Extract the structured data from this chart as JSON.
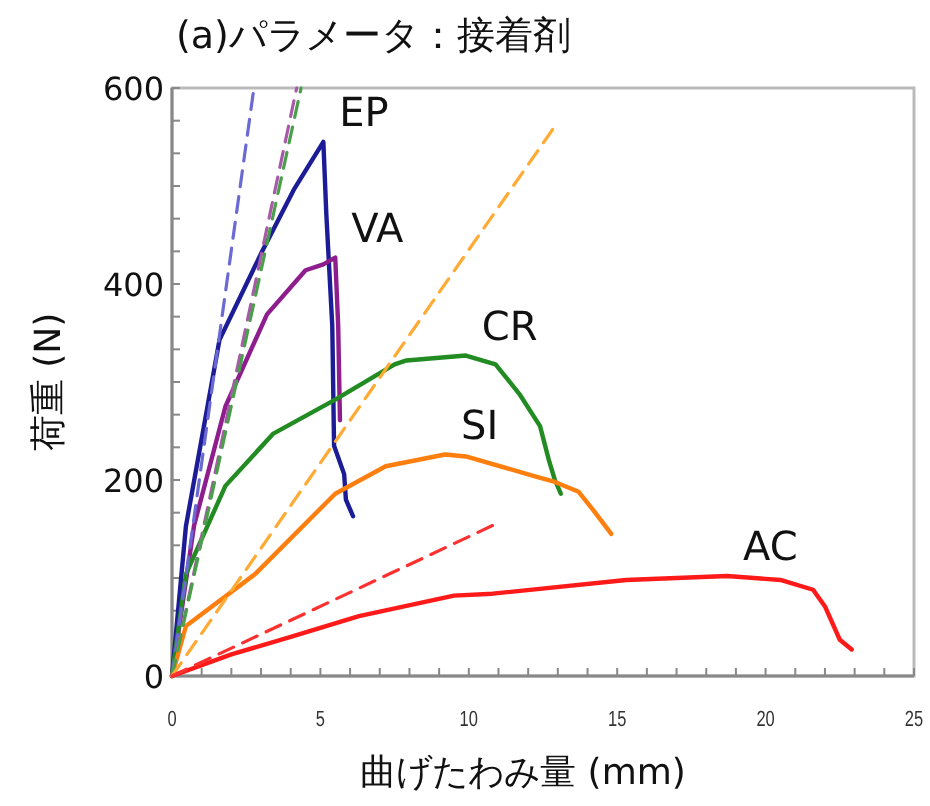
{
  "chart_data": {
    "type": "line",
    "title": "(a)パラメータ：接着剤",
    "xlabel": "曲げたわみ量 (mm)",
    "ylabel": "荷重 (N)",
    "xlim": [
      0,
      25
    ],
    "ylim": [
      0,
      600
    ],
    "xticks": [
      0,
      5,
      10,
      15,
      20,
      25
    ],
    "yticks": [
      0,
      200,
      400,
      600
    ],
    "grid": false,
    "legend": false,
    "marker": "none",
    "series": [
      {
        "name": "EP",
        "color": "#1c1c96",
        "line_style": "solid",
        "x": [
          0,
          0.47,
          1.6,
          3.0,
          4.1,
          5.1,
          5.2,
          5.4,
          5.46,
          5.8,
          5.86,
          6.1
        ],
        "values": [
          0,
          153,
          343,
          431,
          496,
          545,
          471,
          357,
          235,
          206,
          180,
          163
        ]
      },
      {
        "name": "VA",
        "color": "#8e1e8e",
        "line_style": "solid",
        "x": [
          0,
          0.74,
          1.8,
          3.2,
          4.5,
          5.1,
          5.5,
          5.6,
          5.66
        ],
        "values": [
          0,
          153,
          275,
          369,
          414,
          420,
          427,
          357,
          261
        ]
      },
      {
        "name": "CR",
        "color": "#228b22",
        "line_style": "solid",
        "x": [
          0,
          0.47,
          1.8,
          3.4,
          5.5,
          7.5,
          7.9,
          9.9,
          10.9,
          11.7,
          12.4,
          12.7,
          12.9,
          13.1
        ],
        "values": [
          0,
          104,
          194,
          247,
          282,
          318,
          322,
          327,
          318,
          288,
          255,
          220,
          200,
          186
        ]
      },
      {
        "name": "SI",
        "color": "#ff7f0e",
        "line_style": "solid",
        "x": [
          0,
          0.47,
          2.8,
          5.5,
          7.2,
          9.2,
          9.9,
          12.2,
          12.9,
          13.7,
          14.2,
          14.8
        ],
        "values": [
          0,
          51,
          104,
          186,
          214,
          226,
          224,
          204,
          198,
          188,
          169,
          145
        ]
      },
      {
        "name": "AC",
        "color": "#ff1a1a",
        "line_style": "solid",
        "x": [
          0,
          2,
          4,
          6.3,
          9.5,
          10.8,
          15.3,
          18.7,
          20.5,
          21.6,
          22.0,
          22.5,
          22.9
        ],
        "values": [
          0,
          22,
          40,
          61,
          82,
          84,
          98,
          102,
          98,
          88,
          71,
          37,
          27
        ]
      },
      {
        "color": "#6a6ad2",
        "line_style": "dashed",
        "x": [
          0,
          2.76
        ],
        "values": [
          0,
          600
        ]
      },
      {
        "color": "#a85aa8",
        "line_style": "dashed",
        "x": [
          0,
          4.2
        ],
        "values": [
          0,
          600
        ]
      },
      {
        "color": "#4aa04a",
        "line_style": "dashed",
        "x": [
          0,
          4.35
        ],
        "values": [
          0,
          600
        ]
      },
      {
        "color": "#ffaa33",
        "line_style": "dashed",
        "x": [
          0,
          12.9
        ],
        "values": [
          0,
          561
        ]
      },
      {
        "color": "#ff3030",
        "line_style": "dashed",
        "x": [
          0,
          10.9
        ],
        "values": [
          0,
          155
        ]
      }
    ]
  }
}
